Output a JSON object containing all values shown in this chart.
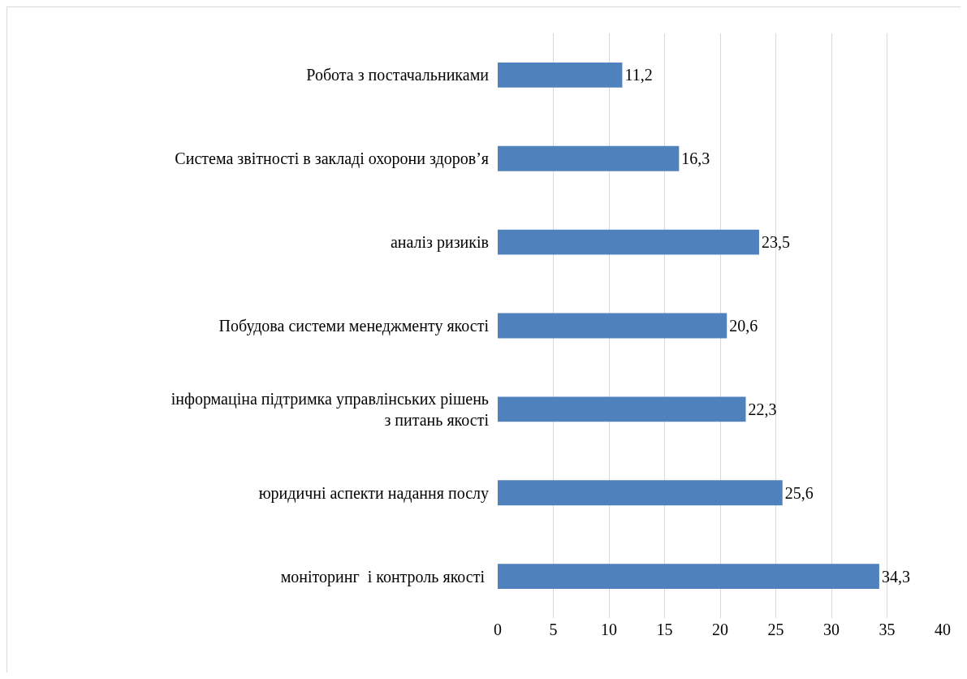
{
  "chart_data": {
    "type": "bar",
    "orientation": "horizontal",
    "categories": [
      "Робота з постачальниками",
      "Система звітності в закладі охорони здоров’я",
      "аналіз ризиків",
      "Побудова системи менеджменту якості",
      "інформаціна підтримка управлінських рішень з питань якості",
      "юридичні аспекти надання послу",
      "моніторинг  і контроль якості "
    ],
    "values": [
      11.2,
      16.3,
      23.5,
      20.6,
      22.3,
      25.6,
      34.3
    ],
    "value_labels": [
      "11,2",
      "16,3",
      "23,5",
      "20,6",
      "22,3",
      "25,6",
      "34,3"
    ],
    "color": "#4f81bd",
    "xlim": [
      0,
      40
    ],
    "xticks": [
      0,
      5,
      10,
      15,
      20,
      25,
      30,
      35,
      40
    ],
    "grid": "x"
  }
}
